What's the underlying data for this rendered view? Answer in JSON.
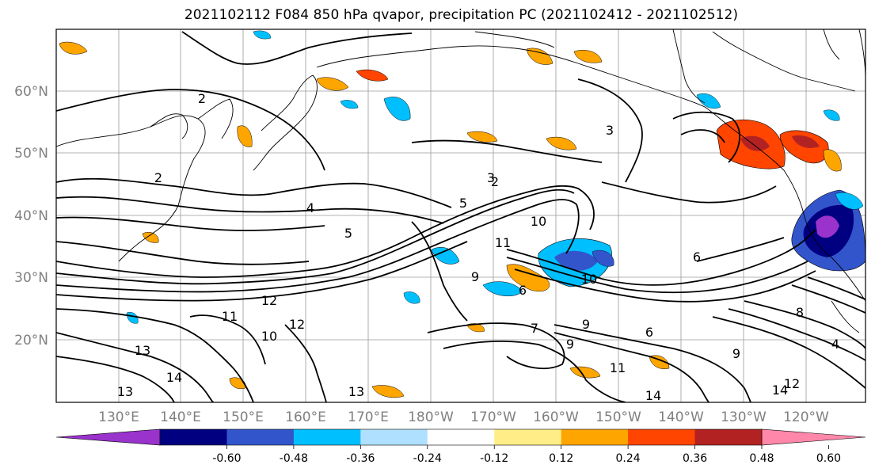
{
  "title": "2021102112 F084 850 hPa qvapor, precipitation PC (2021102412 - 2021102512)",
  "lat_labels": [
    "60°N",
    "50°N",
    "40°N",
    "30°N",
    "20°N"
  ],
  "lon_labels": [
    "130°E",
    "140°E",
    "150°E",
    "160°E",
    "170°E",
    "180°W",
    "170°W",
    "160°W",
    "150°W",
    "140°W",
    "130°W",
    "120°W"
  ],
  "colorbar": {
    "colors": [
      "#9933cc",
      "#000080",
      "#3355cc",
      "#00bfff",
      "#b0e0ff",
      "#ffffff",
      "#ffee88",
      "#ffa500",
      "#ff4500",
      "#b22222",
      "#ff88aa"
    ],
    "tick_labels": [
      "-0.60",
      "-0.48",
      "-0.36",
      "-0.24",
      "-0.12",
      "0.12",
      "0.24",
      "0.36",
      "0.48",
      "0.60"
    ]
  },
  "contour_labels": [
    "2",
    "3",
    "4",
    "5",
    "6",
    "7",
    "8",
    "9",
    "10",
    "11",
    "12",
    "13",
    "14"
  ],
  "placed_contour_labels": [
    {
      "t": "2"
    },
    {
      "t": "2"
    },
    {
      "t": "3"
    },
    {
      "t": "4"
    },
    {
      "t": "5"
    },
    {
      "t": "5"
    },
    {
      "t": "8"
    },
    {
      "t": "9"
    },
    {
      "t": "10"
    },
    {
      "t": "11"
    },
    {
      "t": "11"
    },
    {
      "t": "12"
    },
    {
      "t": "10"
    },
    {
      "t": "12"
    },
    {
      "t": "13"
    },
    {
      "t": "14"
    },
    {
      "t": "13"
    },
    {
      "t": "13"
    },
    {
      "t": "9"
    },
    {
      "t": "6"
    },
    {
      "t": "6"
    },
    {
      "t": "7"
    },
    {
      "t": "9"
    },
    {
      "t": "11"
    },
    {
      "t": "12"
    },
    {
      "t": "14"
    },
    {
      "t": "9"
    },
    {
      "t": "14"
    },
    {
      "t": "4"
    },
    {
      "t": "6"
    },
    {
      "t": "10"
    },
    {
      "t": "2"
    },
    {
      "t": "3"
    }
  ]
}
